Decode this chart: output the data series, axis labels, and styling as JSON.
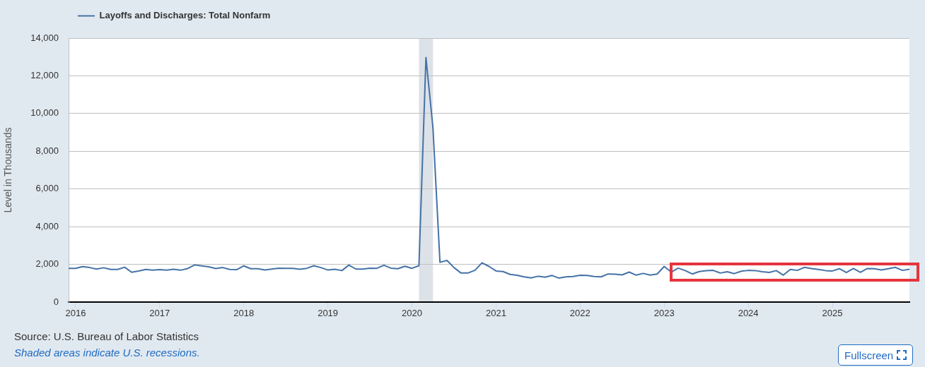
{
  "chart_data": {
    "type": "line",
    "ylabel": "Level in Thousands",
    "legend": "top left",
    "grid": "y",
    "marker": "none",
    "line_style": "solid",
    "annotations": [
      "Source: U.S. Bureau of Labor Statistics",
      "Shaded areas indicate U.S. recessions.",
      "Fullscreen"
    ],
    "xlim": [
      "2015-12",
      "2025-12"
    ],
    "xticks": [
      "2016",
      "2017",
      "2018",
      "2019",
      "2020",
      "2021",
      "2022",
      "2023",
      "2024",
      "2025"
    ],
    "ylim": [
      0,
      14000
    ],
    "yticks": [
      0,
      {
        "value": 2000,
        "label": "2,000"
      },
      {
        "value": 4000,
        "label": "4,000"
      },
      {
        "value": 6000,
        "label": "6,000"
      },
      {
        "value": 8000,
        "label": "8,000"
      },
      {
        "value": 10000,
        "label": "10,000"
      },
      {
        "value": 12000,
        "label": "12,000"
      },
      {
        "value": 14000,
        "label": "14,000"
      }
    ],
    "bands": [
      {
        "axis": "x",
        "from": "2020-02",
        "to": "2020-04",
        "color": "#dde2e8"
      }
    ],
    "x": [
      "2015-12",
      "2016-01",
      "2016-02",
      "2016-03",
      "2016-04",
      "2016-05",
      "2016-06",
      "2016-07",
      "2016-08",
      "2016-09",
      "2016-10",
      "2016-11",
      "2016-12",
      "2017-01",
      "2017-02",
      "2017-03",
      "2017-04",
      "2017-05",
      "2017-06",
      "2017-07",
      "2017-08",
      "2017-09",
      "2017-10",
      "2017-11",
      "2017-12",
      "2018-01",
      "2018-02",
      "2018-03",
      "2018-04",
      "2018-05",
      "2018-06",
      "2018-07",
      "2018-08",
      "2018-09",
      "2018-10",
      "2018-11",
      "2018-12",
      "2019-01",
      "2019-02",
      "2019-03",
      "2019-04",
      "2019-05",
      "2019-06",
      "2019-07",
      "2019-08",
      "2019-09",
      "2019-10",
      "2019-11",
      "2019-12",
      "2020-01",
      "2020-02",
      "2020-03",
      "2020-04",
      "2020-05",
      "2020-06",
      "2020-07",
      "2020-08",
      "2020-09",
      "2020-10",
      "2020-11",
      "2020-12",
      "2021-01",
      "2021-02",
      "2021-03",
      "2021-04",
      "2021-05",
      "2021-06",
      "2021-07",
      "2021-08",
      "2021-09",
      "2021-10",
      "2021-11",
      "2021-12",
      "2022-01",
      "2022-02",
      "2022-03",
      "2022-04",
      "2022-05",
      "2022-06",
      "2022-07",
      "2022-08",
      "2022-09",
      "2022-10",
      "2022-11",
      "2022-12",
      "2023-01",
      "2023-02",
      "2023-03",
      "2023-04",
      "2023-05",
      "2023-06",
      "2023-07",
      "2023-08",
      "2023-09",
      "2023-10",
      "2023-11",
      "2023-12",
      "2024-01",
      "2024-02",
      "2024-03",
      "2024-04",
      "2024-05",
      "2024-06",
      "2024-07",
      "2024-08",
      "2024-09",
      "2024-10",
      "2024-11",
      "2024-12",
      "2025-01",
      "2025-02",
      "2025-03",
      "2025-04",
      "2025-05",
      "2025-06",
      "2025-07",
      "2025-08",
      "2025-09",
      "2025-10",
      "2025-11",
      "2025-12"
    ],
    "series": [
      {
        "name": "Layoffs and Discharges: Total Nonfarm",
        "color": "#4572a7",
        "values": [
          1790,
          1790,
          1880,
          1830,
          1750,
          1820,
          1730,
          1730,
          1850,
          1580,
          1650,
          1730,
          1690,
          1720,
          1690,
          1740,
          1690,
          1780,
          1970,
          1920,
          1870,
          1780,
          1830,
          1730,
          1720,
          1920,
          1770,
          1770,
          1700,
          1750,
          1800,
          1790,
          1790,
          1740,
          1790,
          1930,
          1830,
          1700,
          1740,
          1670,
          1960,
          1750,
          1750,
          1800,
          1790,
          1950,
          1800,
          1770,
          1900,
          1790,
          1930,
          12970,
          9230,
          2110,
          2210,
          1830,
          1540,
          1540,
          1690,
          2080,
          1890,
          1650,
          1620,
          1470,
          1420,
          1340,
          1280,
          1370,
          1320,
          1410,
          1270,
          1340,
          1360,
          1420,
          1410,
          1360,
          1340,
          1490,
          1480,
          1440,
          1590,
          1430,
          1520,
          1430,
          1490,
          1890,
          1590,
          1800,
          1670,
          1490,
          1620,
          1670,
          1680,
          1540,
          1610,
          1510,
          1640,
          1680,
          1670,
          1610,
          1570,
          1670,
          1430,
          1730,
          1680,
          1840,
          1780,
          1730,
          1670,
          1650,
          1770,
          1570,
          1780,
          1580,
          1780,
          1770,
          1700,
          1770,
          1840,
          1680,
          1740
        ]
      }
    ]
  }
}
